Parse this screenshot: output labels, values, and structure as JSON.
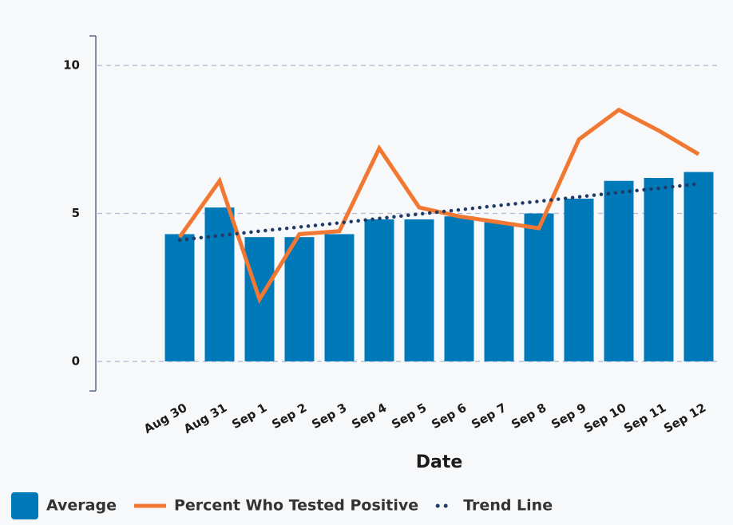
{
  "chart_data": {
    "type": "bar",
    "x_label": "Date",
    "categories": [
      "Aug 30",
      "Aug 31",
      "Sep 1",
      "Sep 2",
      "Sep 3",
      "Sep 4",
      "Sep 5",
      "Sep 6",
      "Sep 7",
      "Sep 8",
      "Sep 9",
      "Sep 10",
      "Sep 11",
      "Sep 12"
    ],
    "series": [
      {
        "name": "Average",
        "type": "bar",
        "color": "#0079b8",
        "values": [
          4.3,
          5.2,
          4.2,
          4.2,
          4.3,
          4.8,
          4.8,
          4.9,
          4.7,
          5.0,
          5.5,
          6.1,
          6.2,
          6.4
        ]
      },
      {
        "name": "Percent Who Tested Positive",
        "type": "line",
        "color": "#f07833",
        "values": [
          4.2,
          6.1,
          2.1,
          4.3,
          4.4,
          7.2,
          5.2,
          4.9,
          4.7,
          4.5,
          7.5,
          8.5,
          7.8,
          7.0
        ]
      },
      {
        "name": "Trend Line",
        "type": "dotted",
        "color": "#1f3a66",
        "values": [
          4.1,
          4.25,
          4.4,
          4.54,
          4.68,
          4.83,
          4.98,
          5.12,
          5.27,
          5.41,
          5.56,
          5.71,
          5.85,
          6.0
        ]
      }
    ],
    "ylim": [
      -1,
      11
    ],
    "yticks": [
      0,
      5,
      10
    ],
    "grid": true,
    "legend": "bottom-left"
  }
}
